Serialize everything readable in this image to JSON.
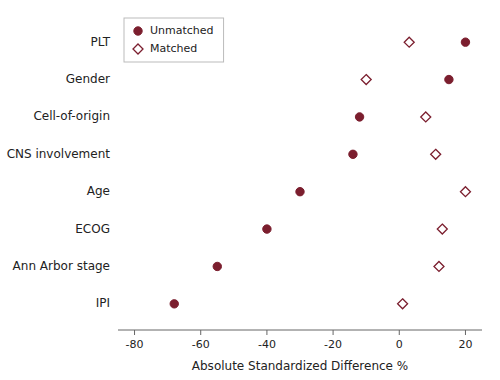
{
  "chart_data": {
    "type": "scatter",
    "orientation": "horizontal",
    "xlabel": "Absolute Standardized Difference %",
    "categories": [
      "PLT",
      "Gender",
      "Cell-of-origin",
      "CNS involvement",
      "Age",
      "ECOG",
      "Ann Arbor stage",
      "IPI"
    ],
    "series": [
      {
        "name": "Unmatched",
        "color": "#7b1e2e",
        "marker": "circle",
        "values": [
          20,
          15,
          -12,
          -14,
          -30,
          -40,
          -55,
          -68
        ]
      },
      {
        "name": "Matched",
        "color": "#7b1e2e",
        "marker": "diamond",
        "values": [
          3,
          -10,
          8,
          11,
          20,
          13,
          12,
          1
        ]
      }
    ],
    "xlim": [
      -85,
      25
    ],
    "xticks": [
      -80,
      -60,
      -40,
      -20,
      0,
      20
    ],
    "grid": false,
    "legend": "upper left"
  }
}
